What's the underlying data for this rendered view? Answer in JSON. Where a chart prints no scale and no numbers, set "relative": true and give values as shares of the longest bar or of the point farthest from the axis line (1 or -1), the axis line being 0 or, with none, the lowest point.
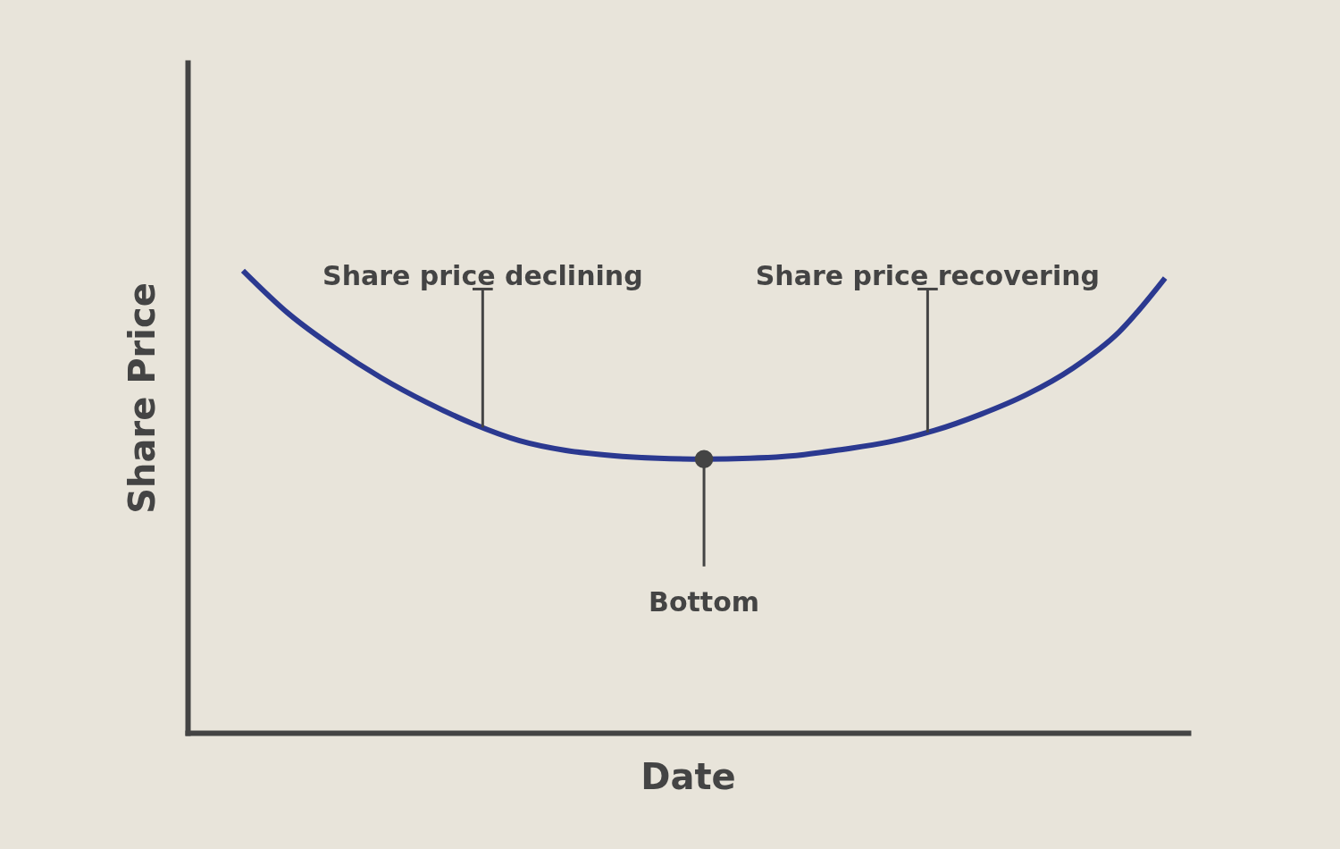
{
  "chart_data": {
    "type": "line",
    "relative": true,
    "xlabel": "Date",
    "ylabel": "Share Price",
    "categories": [
      null,
      null,
      null,
      null,
      null,
      null,
      null,
      null,
      null,
      null,
      null,
      null,
      null,
      null,
      null,
      null,
      null,
      null,
      null,
      null,
      null
    ],
    "series": [
      {
        "color": "#2b3990",
        "values": [
          1.0,
          0.906,
          0.832,
          0.768,
          0.714,
          0.668,
          0.632,
          0.611,
          0.6,
          0.594,
          0.592,
          0.594,
          0.6,
          0.613,
          0.629,
          0.654,
          0.689,
          0.732,
          0.789,
          0.867,
          0.984
        ]
      }
    ],
    "annotations": [
      "Share price declining",
      "Bottom",
      "Share price recovering"
    ],
    "grid": false,
    "marker": "none",
    "line_style": "solid"
  }
}
